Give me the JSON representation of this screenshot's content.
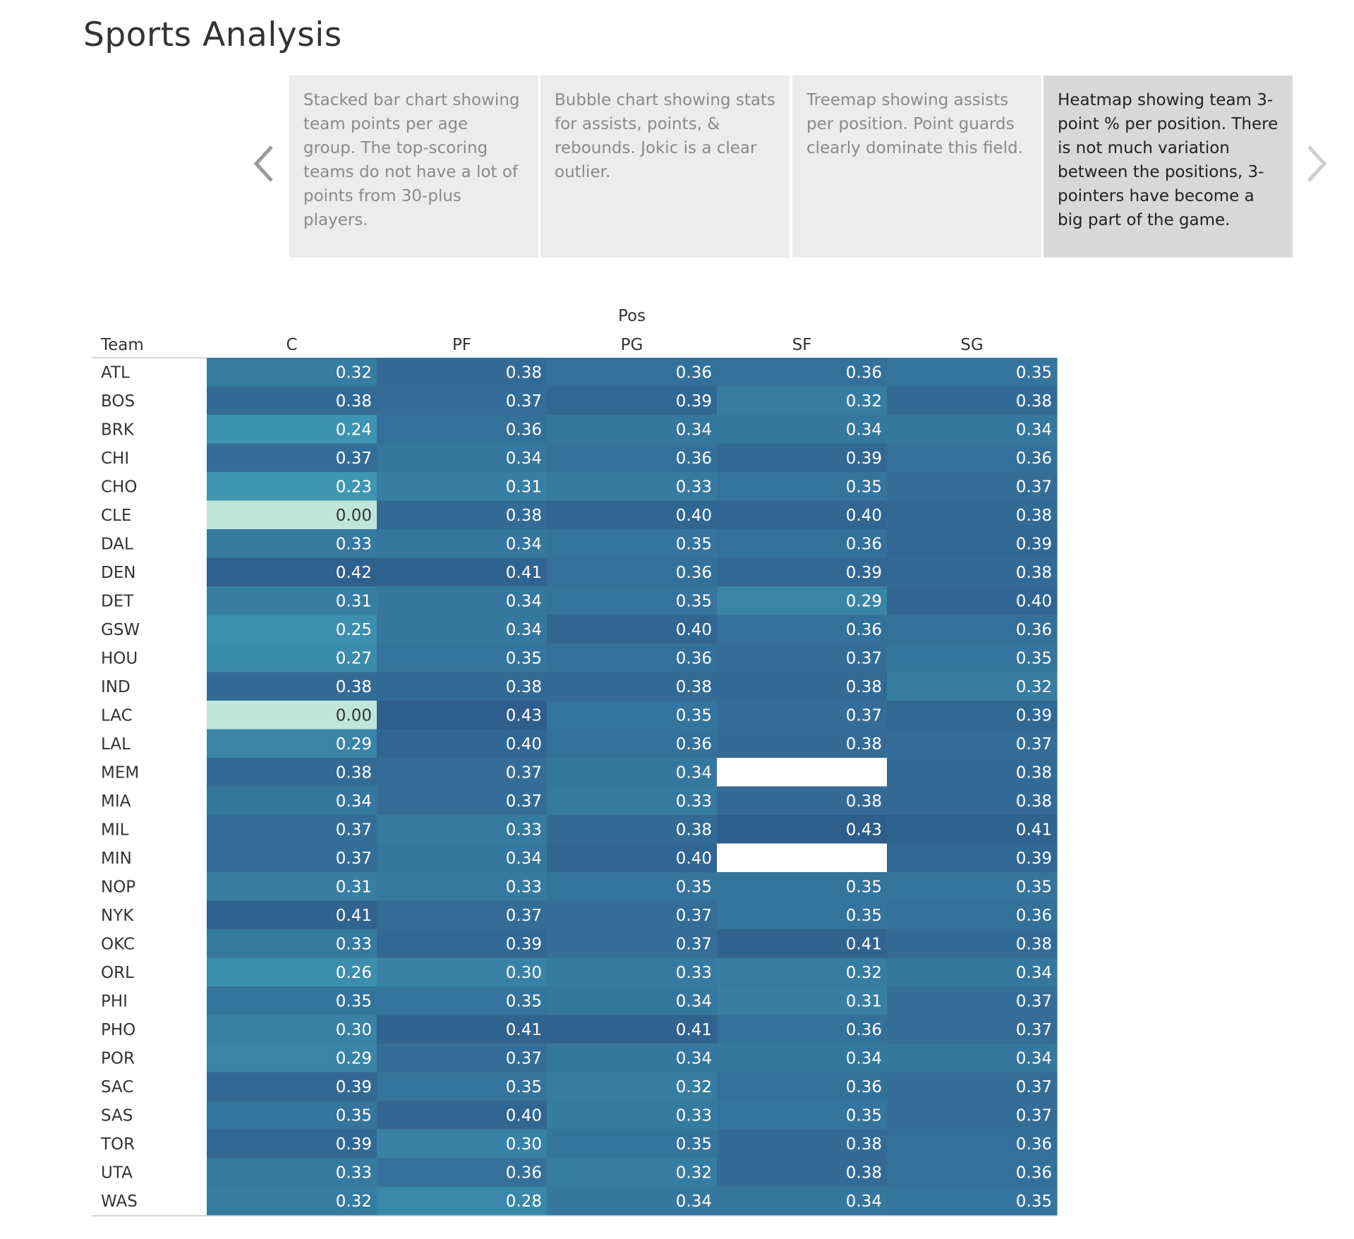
{
  "page": {
    "title": "Sports Analysis"
  },
  "story_points": [
    {
      "text": "Stacked bar chart showing team points per age group. The top-scoring teams do not have a lot of points from 30-plus players.",
      "active": false
    },
    {
      "text": "Bubble chart showing stats for assists, points, & rebounds. Jokic is a clear outlier.",
      "active": false
    },
    {
      "text": "Treemap showing assists per position. Point guards clearly dominate this field.",
      "active": false
    },
    {
      "text": "Heatmap showing team 3-point % per position. There is  not much variation between the positions, 3-pointers have become a big part of the game.",
      "active": true
    }
  ],
  "icons": {
    "prev": "chevron-left-icon",
    "next": "chevron-right-icon"
  },
  "colors": {
    "low": "#bfe6d8",
    "mid": "#3f99b5",
    "high": "#2f5d8c",
    "missing": "#ffffff",
    "story_active_bg": "#d8d8d8",
    "story_bg": "#ececec"
  },
  "chart_data": {
    "type": "heatmap",
    "title": "",
    "col_header": "Pos",
    "row_header": "Team",
    "columns": [
      "C",
      "PF",
      "PG",
      "SF",
      "SG"
    ],
    "rows": [
      "ATL",
      "BOS",
      "BRK",
      "CHI",
      "CHO",
      "CLE",
      "DAL",
      "DEN",
      "DET",
      "GSW",
      "HOU",
      "IND",
      "LAC",
      "LAL",
      "MEM",
      "MIA",
      "MIL",
      "MIN",
      "NOP",
      "NYK",
      "OKC",
      "ORL",
      "PHI",
      "PHO",
      "POR",
      "SAC",
      "SAS",
      "TOR",
      "UTA",
      "WAS"
    ],
    "values": [
      [
        0.32,
        0.38,
        0.36,
        0.36,
        0.35
      ],
      [
        0.38,
        0.37,
        0.39,
        0.32,
        0.38
      ],
      [
        0.24,
        0.36,
        0.34,
        0.34,
        0.34
      ],
      [
        0.37,
        0.34,
        0.36,
        0.39,
        0.36
      ],
      [
        0.23,
        0.31,
        0.33,
        0.35,
        0.37
      ],
      [
        0.0,
        0.38,
        0.4,
        0.4,
        0.38
      ],
      [
        0.33,
        0.34,
        0.35,
        0.36,
        0.39
      ],
      [
        0.42,
        0.41,
        0.36,
        0.39,
        0.38
      ],
      [
        0.31,
        0.34,
        0.35,
        0.29,
        0.4
      ],
      [
        0.25,
        0.34,
        0.4,
        0.36,
        0.36
      ],
      [
        0.27,
        0.35,
        0.36,
        0.37,
        0.35
      ],
      [
        0.38,
        0.38,
        0.38,
        0.38,
        0.32
      ],
      [
        0.0,
        0.43,
        0.35,
        0.37,
        0.39
      ],
      [
        0.29,
        0.4,
        0.36,
        0.38,
        0.37
      ],
      [
        0.38,
        0.37,
        0.34,
        null,
        0.38
      ],
      [
        0.34,
        0.37,
        0.33,
        0.38,
        0.38
      ],
      [
        0.37,
        0.33,
        0.38,
        0.43,
        0.41
      ],
      [
        0.37,
        0.34,
        0.4,
        null,
        0.39
      ],
      [
        0.31,
        0.33,
        0.35,
        0.35,
        0.35
      ],
      [
        0.41,
        0.37,
        0.37,
        0.35,
        0.36
      ],
      [
        0.33,
        0.39,
        0.37,
        0.41,
        0.38
      ],
      [
        0.26,
        0.3,
        0.33,
        0.32,
        0.34
      ],
      [
        0.35,
        0.35,
        0.34,
        0.31,
        0.37
      ],
      [
        0.3,
        0.41,
        0.41,
        0.36,
        0.37
      ],
      [
        0.29,
        0.37,
        0.34,
        0.34,
        0.34
      ],
      [
        0.39,
        0.35,
        0.32,
        0.36,
        0.37
      ],
      [
        0.35,
        0.4,
        0.33,
        0.35,
        0.37
      ],
      [
        0.39,
        0.3,
        0.35,
        0.38,
        0.36
      ],
      [
        0.33,
        0.36,
        0.32,
        0.38,
        0.36
      ],
      [
        0.32,
        0.28,
        0.34,
        0.34,
        0.35
      ]
    ],
    "value_range": [
      0.0,
      0.43
    ],
    "grid": false,
    "legend": "none"
  }
}
